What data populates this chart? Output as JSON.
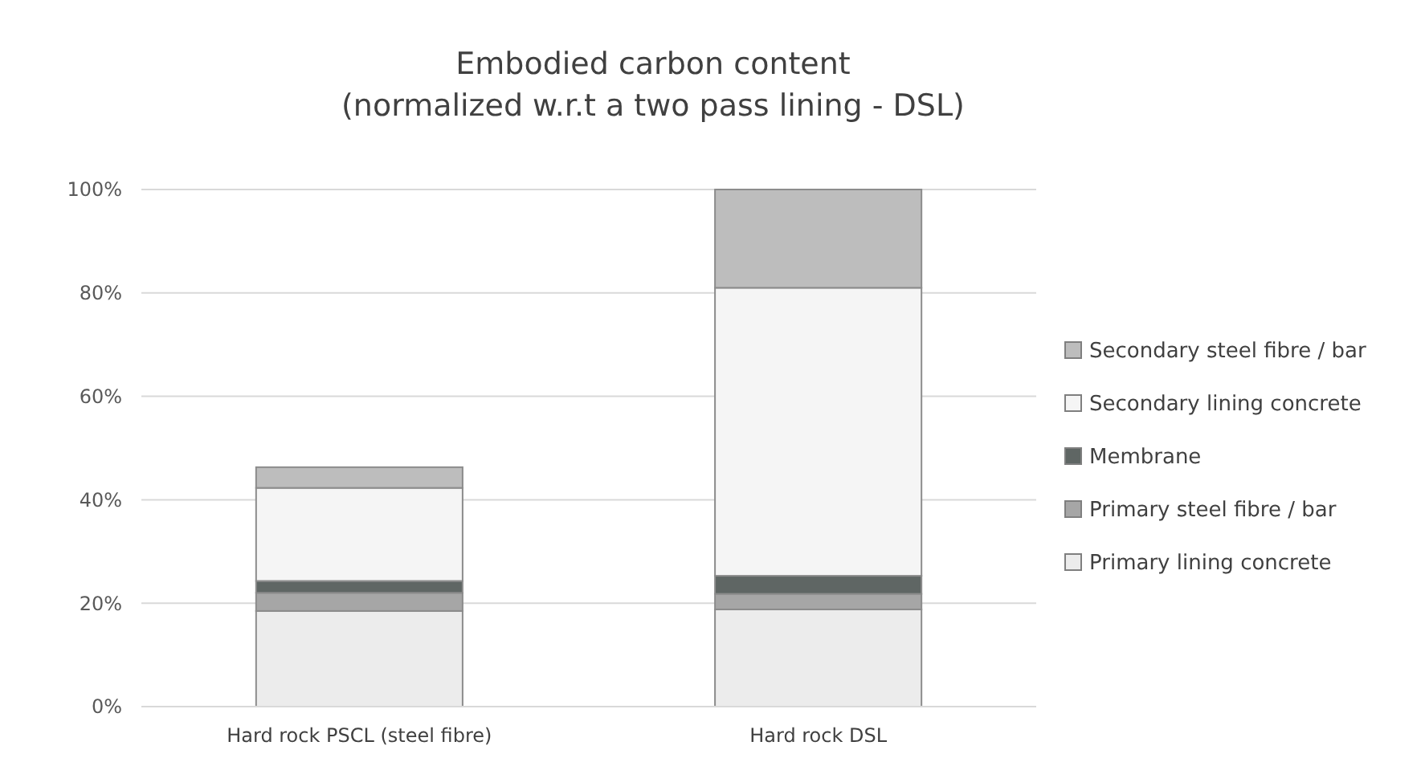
{
  "chart_data": {
    "type": "bar",
    "title": "Embodied carbon content",
    "subtitle": "(normalized w.r.t a two pass lining - DSL)",
    "categories": [
      "Hard rock PSCL (steel fibre)",
      "Hard rock DSL"
    ],
    "stacked": true,
    "series": [
      {
        "name": "Primary lining concrete",
        "color": "#ececec",
        "values": [
          18.5,
          18.8
        ]
      },
      {
        "name": "Primary steel fibre / bar",
        "color": "#a6a6a6",
        "values": [
          3.5,
          3
        ]
      },
      {
        "name": "Membrane",
        "color": "#5f6664",
        "values": [
          2.3,
          3.5
        ]
      },
      {
        "name": "Secondary lining concrete",
        "color": "#f5f5f5",
        "values": [
          18,
          55.7
        ]
      },
      {
        "name": "Secondary steel fibre / bar",
        "color": "#bdbdbd",
        "values": [
          4,
          19
        ]
      }
    ],
    "ylim": [
      0,
      100
    ],
    "yticks": [
      {
        "value": 0,
        "label": "0%"
      },
      {
        "value": 20,
        "label": "20%"
      },
      {
        "value": 40,
        "label": "40%"
      },
      {
        "value": 60,
        "label": "60%"
      },
      {
        "value": 80,
        "label": "80%"
      },
      {
        "value": 100,
        "label": "100%"
      }
    ],
    "grid": "y",
    "legend": "right"
  }
}
